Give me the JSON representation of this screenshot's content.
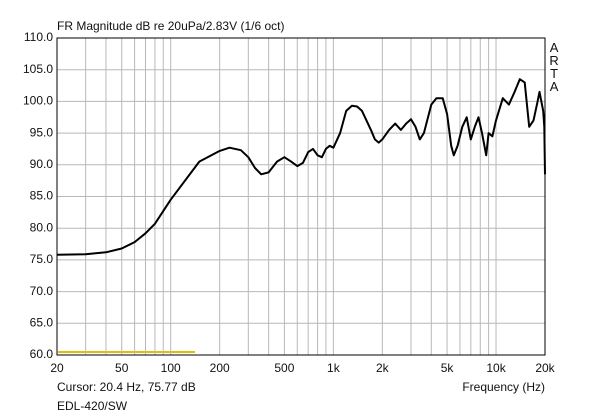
{
  "chart_data": {
    "type": "line",
    "title": "FR Magnitude dB re 20uPa/2.83V (1/6 oct)",
    "x_label": "Frequency (Hz)",
    "annotations": [
      "Cursor: 20.4 Hz, 75.77 dB",
      "EDL-420/SW"
    ],
    "watermark": "ARTA",
    "x_log": true,
    "grid": true,
    "xlim": [
      20,
      20000
    ],
    "ylim": [
      60,
      110
    ],
    "xticks": [
      20,
      50,
      100,
      200,
      500,
      {
        "value": 1000,
        "label": "1k"
      },
      {
        "value": 2000,
        "label": "2k"
      },
      {
        "value": 5000,
        "label": "5k"
      },
      {
        "value": 10000,
        "label": "10k"
      },
      {
        "value": 20000,
        "label": "20k"
      }
    ],
    "xminorticks": [
      30,
      40,
      60,
      70,
      80,
      90,
      300,
      400,
      600,
      700,
      800,
      900,
      3000,
      4000,
      6000,
      7000,
      8000,
      9000
    ],
    "yticks": [
      {
        "value": 110,
        "label": "110.0"
      },
      {
        "value": 105,
        "label": "105.0"
      },
      {
        "value": 100,
        "label": "100.0"
      },
      {
        "value": 95,
        "label": "95.0"
      },
      {
        "value": 90,
        "label": "90.0"
      },
      {
        "value": 85,
        "label": "85.0"
      },
      {
        "value": 80,
        "label": "80.0"
      },
      {
        "value": 75,
        "label": "75.0"
      },
      {
        "value": 70,
        "label": "70.0"
      },
      {
        "value": 65,
        "label": "65.0"
      },
      {
        "value": 60,
        "label": "60.0"
      }
    ],
    "series": [
      {
        "name": "EDL-420/SW",
        "color": "#000000",
        "x": [
          20,
          30,
          40,
          50,
          60,
          70,
          80,
          100,
          150,
          200,
          230,
          270,
          300,
          330,
          360,
          400,
          450,
          500,
          550,
          600,
          650,
          700,
          750,
          800,
          850,
          900,
          950,
          1000,
          1100,
          1200,
          1300,
          1400,
          1500,
          1700,
          1800,
          1900,
          2000,
          2200,
          2400,
          2600,
          2800,
          3000,
          3200,
          3400,
          3600,
          4000,
          4300,
          4700,
          5000,
          5300,
          5500,
          5800,
          6200,
          6600,
          7000,
          7400,
          7800,
          8200,
          8700,
          9000,
          9500,
          10000,
          11000,
          12000,
          13000,
          14000,
          15000,
          16000,
          17000,
          18000,
          18500,
          19500,
          19800,
          20000
        ],
        "values": [
          75.8,
          75.9,
          76.2,
          76.8,
          77.8,
          79.2,
          80.7,
          84.5,
          90.5,
          92.2,
          92.7,
          92.3,
          91.2,
          89.5,
          88.5,
          88.8,
          90.5,
          91.2,
          90.5,
          89.8,
          90.3,
          92,
          92.5,
          91.5,
          91.2,
          92.5,
          93,
          92.7,
          95,
          98.5,
          99.3,
          99.2,
          98.5,
          95.5,
          94,
          93.5,
          94,
          95.5,
          96.5,
          95.5,
          96.5,
          97.2,
          96,
          94,
          95,
          99.5,
          100.5,
          100.5,
          98,
          93,
          91.5,
          93,
          96,
          97.5,
          94,
          96,
          97.5,
          95,
          91.5,
          95,
          94.5,
          97,
          100.5,
          99.5,
          101.5,
          103.5,
          103,
          96,
          97,
          100,
          101.5,
          98.5,
          96,
          88.5
        ]
      }
    ]
  }
}
